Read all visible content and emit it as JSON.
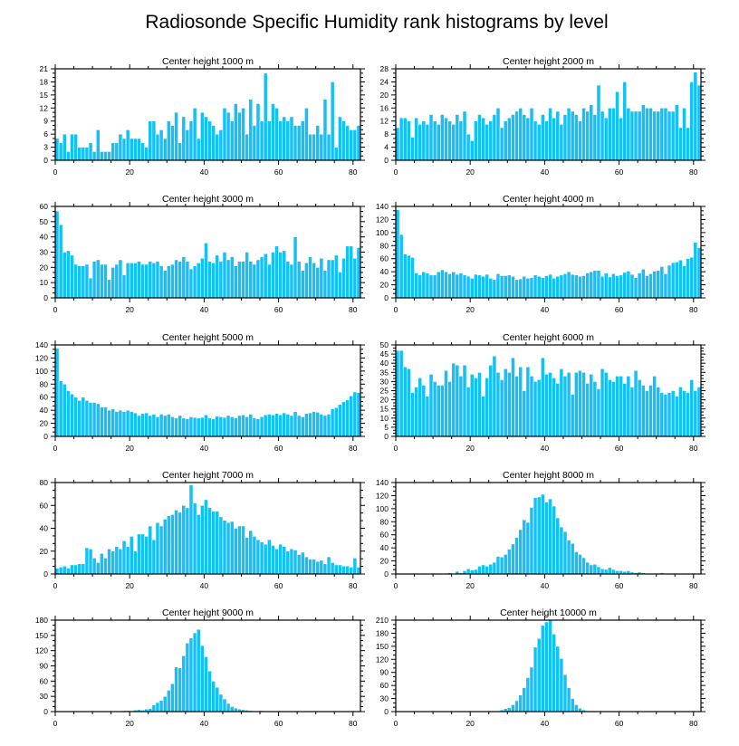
{
  "title": "Radiosonde Specific Humidity rank histograms by level",
  "colors": {
    "bar": "#15c0f5",
    "bar_edge": "#ffffff",
    "axis": "#000000",
    "background": "#ffffff"
  },
  "chart_data": [
    {
      "type": "bar",
      "title": "Center height 1000 m",
      "xlabel": "",
      "ylabel": "",
      "xlim": [
        0,
        82
      ],
      "ylim": [
        0,
        21
      ],
      "xticks": [
        0,
        20,
        40,
        60,
        80
      ],
      "yticks": [
        0,
        3,
        6,
        9,
        12,
        15,
        18,
        21
      ],
      "x_start": 0,
      "values": [
        5,
        4,
        6,
        2,
        6,
        6,
        3,
        3,
        3,
        4,
        2,
        7,
        2,
        2,
        2,
        4,
        4,
        6,
        5,
        7,
        5,
        5,
        5,
        4,
        3,
        9,
        9,
        6,
        7,
        5,
        9,
        8,
        11,
        4,
        10,
        7,
        9,
        12,
        5,
        11,
        10,
        9,
        8,
        6,
        7,
        12,
        11,
        9,
        13,
        11,
        12,
        6,
        14,
        8,
        13,
        9,
        20,
        9,
        13,
        12,
        9,
        10,
        9,
        10,
        8,
        8,
        9,
        12,
        6,
        6,
        8,
        6,
        14,
        6,
        18,
        3,
        10,
        9,
        8,
        7,
        7,
        8
      ]
    },
    {
      "type": "bar",
      "title": "Center height 2000 m",
      "xlabel": "",
      "ylabel": "",
      "xlim": [
        0,
        82
      ],
      "ylim": [
        0,
        28
      ],
      "xticks": [
        0,
        20,
        40,
        60,
        80
      ],
      "yticks": [
        0,
        4,
        8,
        12,
        16,
        20,
        24,
        28
      ],
      "x_start": 0,
      "values": [
        10,
        13,
        13,
        12,
        7,
        13,
        11,
        12,
        11,
        14,
        12,
        11,
        14,
        13,
        12,
        11,
        14,
        12,
        15,
        8,
        6,
        12,
        14,
        13,
        11,
        12,
        14,
        16,
        10,
        12,
        13,
        14,
        15,
        16,
        14,
        13,
        16,
        12,
        11,
        14,
        12,
        16,
        13,
        15,
        11,
        14,
        16,
        15,
        14,
        12,
        16,
        15,
        17,
        14,
        23,
        15,
        13,
        16,
        16,
        21,
        13,
        24,
        16,
        15,
        15,
        15,
        17,
        16,
        16,
        15,
        15,
        16,
        16,
        15,
        15,
        17,
        10,
        16,
        10,
        24,
        27,
        23
      ]
    },
    {
      "type": "bar",
      "title": "Center height 3000 m",
      "xlabel": "",
      "ylabel": "",
      "xlim": [
        0,
        82
      ],
      "ylim": [
        0,
        60
      ],
      "xticks": [
        0,
        20,
        40,
        60,
        80
      ],
      "yticks": [
        0,
        10,
        20,
        30,
        40,
        50,
        60
      ],
      "x_start": 0,
      "values": [
        57,
        48,
        30,
        31,
        28,
        22,
        21,
        21,
        22,
        13,
        24,
        25,
        22,
        22,
        12,
        20,
        22,
        25,
        15,
        23,
        23,
        23,
        24,
        22,
        22,
        24,
        23,
        24,
        21,
        18,
        21,
        22,
        25,
        24,
        27,
        24,
        19,
        21,
        23,
        26,
        36,
        24,
        23,
        28,
        24,
        30,
        25,
        27,
        21,
        24,
        24,
        30,
        24,
        22,
        25,
        27,
        29,
        22,
        30,
        34,
        30,
        31,
        24,
        22,
        40,
        24,
        18,
        23,
        27,
        23,
        20,
        26,
        18,
        25,
        25,
        28,
        17,
        26,
        34,
        34,
        26,
        33
      ]
    },
    {
      "type": "bar",
      "title": "Center height 4000 m",
      "xlabel": "",
      "ylabel": "",
      "xlim": [
        0,
        82
      ],
      "ylim": [
        0,
        140
      ],
      "xticks": [
        0,
        20,
        40,
        60,
        80
      ],
      "yticks": [
        0,
        20,
        40,
        60,
        80,
        100,
        120,
        140
      ],
      "x_start": 0,
      "values": [
        135,
        97,
        67,
        65,
        62,
        38,
        35,
        40,
        38,
        35,
        35,
        40,
        43,
        40,
        37,
        40,
        36,
        38,
        35,
        33,
        30,
        36,
        35,
        33,
        36,
        30,
        28,
        37,
        34,
        34,
        35,
        33,
        28,
        29,
        33,
        30,
        31,
        35,
        33,
        31,
        34,
        36,
        30,
        33,
        35,
        37,
        40,
        36,
        35,
        33,
        34,
        38,
        40,
        42,
        42,
        33,
        38,
        32,
        37,
        34,
        35,
        39,
        41,
        36,
        31,
        38,
        44,
        34,
        37,
        41,
        42,
        48,
        37,
        50,
        54,
        55,
        58,
        49,
        60,
        62,
        85,
        77
      ]
    },
    {
      "type": "bar",
      "title": "Center height 5000 m",
      "xlabel": "",
      "ylabel": "",
      "xlim": [
        0,
        82
      ],
      "ylim": [
        0,
        140
      ],
      "xticks": [
        0,
        20,
        40,
        60,
        80
      ],
      "yticks": [
        0,
        20,
        40,
        60,
        80,
        100,
        120,
        140
      ],
      "x_start": 0,
      "values": [
        135,
        85,
        80,
        70,
        65,
        60,
        55,
        60,
        55,
        52,
        52,
        50,
        45,
        45,
        40,
        42,
        38,
        40,
        38,
        40,
        38,
        36,
        32,
        35,
        36,
        32,
        34,
        30,
        34,
        32,
        34,
        30,
        28,
        32,
        28,
        27,
        30,
        29,
        28,
        29,
        33,
        28,
        27,
        31,
        30,
        29,
        32,
        30,
        28,
        32,
        33,
        30,
        34,
        28,
        27,
        30,
        33,
        34,
        33,
        35,
        33,
        36,
        34,
        32,
        38,
        32,
        30,
        35,
        36,
        38,
        37,
        34,
        32,
        34,
        42,
        44,
        49,
        53,
        56,
        62,
        68,
        67
      ]
    },
    {
      "type": "bar",
      "title": "Center height 6000 m",
      "xlabel": "",
      "ylabel": "",
      "xlim": [
        0,
        82
      ],
      "ylim": [
        0,
        50
      ],
      "xticks": [
        0,
        20,
        40,
        60,
        80
      ],
      "yticks": [
        0,
        5,
        10,
        15,
        20,
        25,
        30,
        35,
        40,
        45,
        50
      ],
      "x_start": 0,
      "values": [
        47,
        47,
        38,
        37,
        24,
        27,
        32,
        28,
        22,
        34,
        30,
        28,
        28,
        36,
        30,
        40,
        39,
        33,
        39,
        27,
        34,
        32,
        35,
        22,
        32,
        39,
        44,
        35,
        31,
        37,
        35,
        43,
        33,
        38,
        25,
        38,
        33,
        30,
        31,
        43,
        34,
        35,
        32,
        29,
        37,
        33,
        35,
        23,
        35,
        36,
        35,
        29,
        34,
        30,
        26,
        37,
        35,
        31,
        30,
        33,
        33,
        29,
        33,
        27,
        36,
        31,
        28,
        25,
        28,
        33,
        27,
        24,
        23,
        24,
        25,
        22,
        27,
        25,
        24,
        31,
        25,
        27
      ]
    },
    {
      "type": "bar",
      "title": "Center height 7000 m",
      "xlabel": "",
      "ylabel": "",
      "xlim": [
        0,
        82
      ],
      "ylim": [
        0,
        80
      ],
      "xticks": [
        0,
        20,
        40,
        60,
        80
      ],
      "yticks": [
        0,
        20,
        40,
        60,
        80
      ],
      "x_start": 0,
      "values": [
        5,
        6,
        7,
        5,
        8,
        8,
        9,
        9,
        23,
        22,
        14,
        10,
        18,
        14,
        22,
        20,
        24,
        22,
        29,
        24,
        33,
        20,
        35,
        35,
        33,
        42,
        30,
        45,
        42,
        48,
        51,
        52,
        56,
        54,
        60,
        58,
        78,
        62,
        52,
        60,
        65,
        58,
        55,
        55,
        50,
        47,
        45,
        46,
        40,
        42,
        42,
        32,
        38,
        33,
        30,
        28,
        26,
        30,
        25,
        22,
        26,
        24,
        20,
        22,
        21,
        17,
        19,
        15,
        13,
        13,
        11,
        12,
        9,
        15,
        10,
        8,
        8,
        7,
        7,
        6,
        14,
        6
      ]
    },
    {
      "type": "bar",
      "title": "Center height 8000 m",
      "xlabel": "",
      "ylabel": "",
      "xlim": [
        0,
        82
      ],
      "ylim": [
        0,
        140
      ],
      "xticks": [
        0,
        20,
        40,
        60,
        80
      ],
      "yticks": [
        0,
        20,
        40,
        60,
        80,
        100,
        120,
        140
      ],
      "x_start": 0,
      "values": [
        0,
        0,
        0,
        0,
        0,
        0,
        0,
        0,
        0,
        1,
        0,
        0,
        1,
        0,
        2,
        1,
        4,
        2,
        5,
        8,
        6,
        7,
        12,
        14,
        12,
        15,
        18,
        27,
        26,
        30,
        38,
        46,
        56,
        68,
        83,
        79,
        102,
        117,
        118,
        122,
        110,
        115,
        104,
        86,
        72,
        65,
        52,
        47,
        34,
        30,
        25,
        18,
        14,
        15,
        11,
        8,
        7,
        10,
        7,
        5,
        5,
        4,
        5,
        3,
        2,
        3,
        2,
        1,
        0,
        1,
        0,
        2,
        0,
        0,
        0,
        0,
        0,
        0,
        0,
        0,
        0,
        0
      ]
    },
    {
      "type": "bar",
      "title": "Center height 9000 m",
      "xlabel": "",
      "ylabel": "",
      "xlim": [
        0,
        82
      ],
      "ylim": [
        0,
        180
      ],
      "xticks": [
        0,
        20,
        40,
        60,
        80
      ],
      "yticks": [
        0,
        30,
        60,
        90,
        120,
        150,
        180
      ],
      "x_start": 0,
      "values": [
        0,
        0,
        0,
        0,
        0,
        0,
        0,
        0,
        0,
        0,
        0,
        0,
        0,
        0,
        0,
        0,
        0,
        1,
        2,
        2,
        1,
        3,
        4,
        3,
        5,
        6,
        13,
        18,
        22,
        30,
        42,
        55,
        88,
        86,
        110,
        135,
        145,
        155,
        162,
        130,
        108,
        80,
        60,
        48,
        34,
        25,
        16,
        10,
        7,
        5,
        4,
        3,
        2,
        1,
        1,
        2,
        1,
        0,
        0,
        0,
        0,
        0,
        0,
        0,
        0,
        0,
        0,
        0,
        0,
        0,
        0,
        0,
        0,
        0,
        0,
        0,
        0,
        0,
        0,
        0,
        0,
        0
      ]
    },
    {
      "type": "bar",
      "title": "Center height 10000 m",
      "xlabel": "",
      "ylabel": "",
      "xlim": [
        0,
        82
      ],
      "ylim": [
        0,
        210
      ],
      "xticks": [
        0,
        20,
        40,
        60,
        80
      ],
      "yticks": [
        0,
        30,
        60,
        90,
        120,
        150,
        180,
        210
      ],
      "x_start": 0,
      "values": [
        0,
        0,
        0,
        0,
        0,
        0,
        0,
        0,
        0,
        0,
        0,
        0,
        0,
        0,
        0,
        0,
        0,
        0,
        0,
        0,
        0,
        0,
        0,
        0,
        0,
        0,
        1,
        2,
        4,
        7,
        9,
        16,
        25,
        38,
        55,
        78,
        102,
        148,
        168,
        198,
        206,
        210,
        178,
        150,
        122,
        85,
        55,
        30,
        16,
        8,
        4,
        2,
        1,
        1,
        0,
        0,
        0,
        0,
        0,
        0,
        0,
        0,
        0,
        0,
        0,
        0,
        0,
        0,
        0,
        0,
        0,
        0,
        0,
        0,
        0,
        0,
        0,
        0,
        0,
        0,
        0,
        0
      ]
    }
  ]
}
